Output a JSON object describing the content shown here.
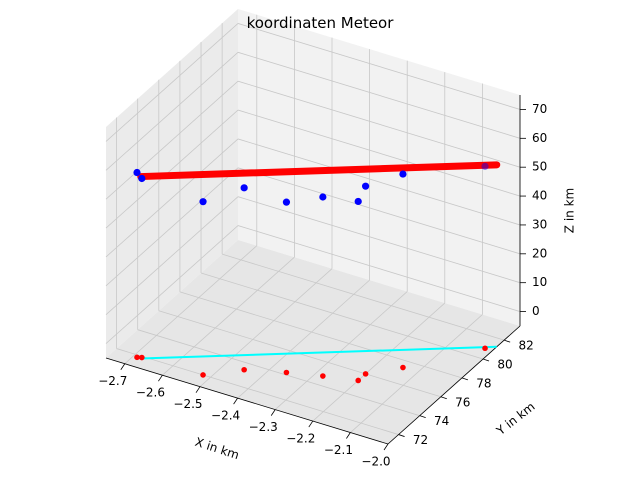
{
  "chart_data": {
    "type": "scatter",
    "title": "koordinaten Meteor",
    "xlabel": "X in km",
    "ylabel": "Y in km",
    "zlabel": "Z in km",
    "xlim": [
      -2.75,
      -2.0
    ],
    "ylim": [
      71,
      83.5
    ],
    "zlim": [
      -5,
      75
    ],
    "x_ticks": [
      -2.7,
      -2.6,
      -2.5,
      -2.4,
      -2.3,
      -2.2,
      -2.1,
      -2.0
    ],
    "y_ticks": [
      72,
      74,
      76,
      78,
      80,
      82
    ],
    "z_ticks": [
      0,
      10,
      20,
      30,
      40,
      50,
      60,
      70
    ],
    "grid": true,
    "colors": {
      "points_3d": "#0000ff",
      "trajectory_3d": "#ff0000",
      "ground_points": "#ff0000",
      "ground_line": "#00ffff",
      "pane_side": "#ebebeb",
      "pane_back": "#f2f2f2",
      "pane_floor": "#e6e6e6"
    },
    "series": [
      {
        "role": "trajectory_3d",
        "style": "line",
        "x": [
          -2.68,
          -2.0
        ],
        "y": [
          71.8,
          81.3
        ],
        "z": [
          58,
          58
        ]
      },
      {
        "role": "ground_projection",
        "style": "line",
        "x": [
          -2.68,
          -2.0
        ],
        "y": [
          71.8,
          81.3
        ],
        "z": [
          -5,
          -5
        ]
      },
      {
        "role": "points_3d",
        "style": "marker",
        "x": [
          -2.69,
          -2.68,
          -2.52,
          -2.45,
          -2.36,
          -2.28,
          -2.2,
          -2.2,
          -2.14,
          -2.02
        ],
        "y": [
          71.8,
          71.9,
          72.0,
          73.4,
          74.2,
          74.8,
          76.0,
          75.3,
          77.4,
          80.9
        ],
        "z": [
          59,
          57,
          55,
          58,
          54,
          57,
          60,
          57,
          62,
          58
        ]
      }
    ]
  }
}
